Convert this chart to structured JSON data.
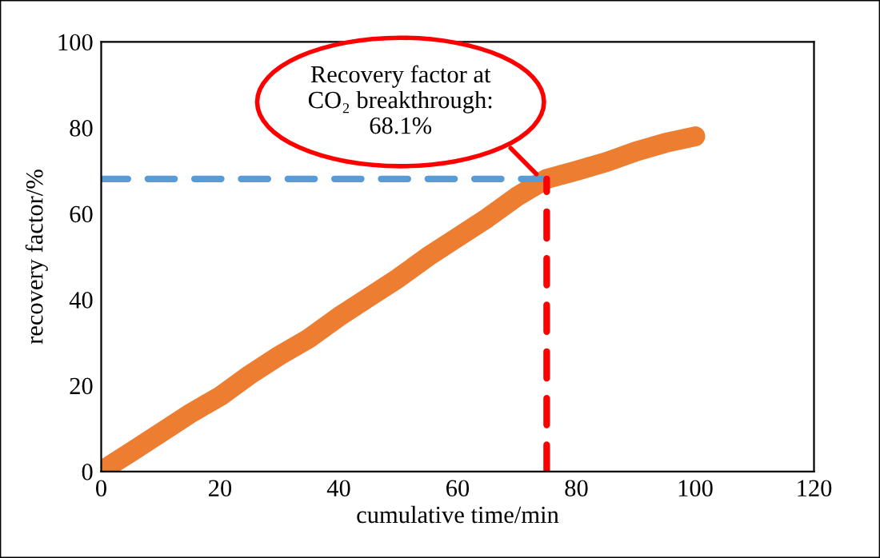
{
  "chart_data": {
    "type": "line",
    "xlabel": "cumulative time/min",
    "ylabel": "recovery factor/%",
    "xlim": [
      0,
      120
    ],
    "xticks": [
      0,
      20,
      40,
      60,
      80,
      100,
      120
    ],
    "ylim": [
      0,
      100
    ],
    "yticks": [
      0,
      20,
      40,
      60,
      80,
      100
    ],
    "grid": false,
    "legend": false,
    "series": [
      {
        "color": "#ed7d31",
        "line_style": "solid",
        "x": [
          1,
          5,
          10,
          15,
          20,
          25,
          30,
          35,
          40,
          45,
          50,
          55,
          60,
          65,
          70,
          75,
          80,
          85,
          90,
          95,
          100
        ],
        "values": [
          1,
          4.5,
          9,
          13.5,
          17.5,
          22.5,
          27,
          31,
          36,
          40.5,
          45,
          50,
          54.5,
          59,
          64,
          68.1,
          70,
          72,
          74.5,
          76.5,
          78
        ]
      },
      {
        "color": "#5b9bd5",
        "line_style": "dashed",
        "x": [
          0,
          75
        ],
        "values": [
          68.1,
          68.1
        ]
      },
      {
        "color": "#ff0000",
        "line_style": "dashed",
        "x": [
          75,
          75
        ],
        "values": [
          0,
          68.1
        ]
      }
    ],
    "annotations": [
      "Recovery factor at\nCO₂ breakthrough:\n68.1%"
    ]
  }
}
